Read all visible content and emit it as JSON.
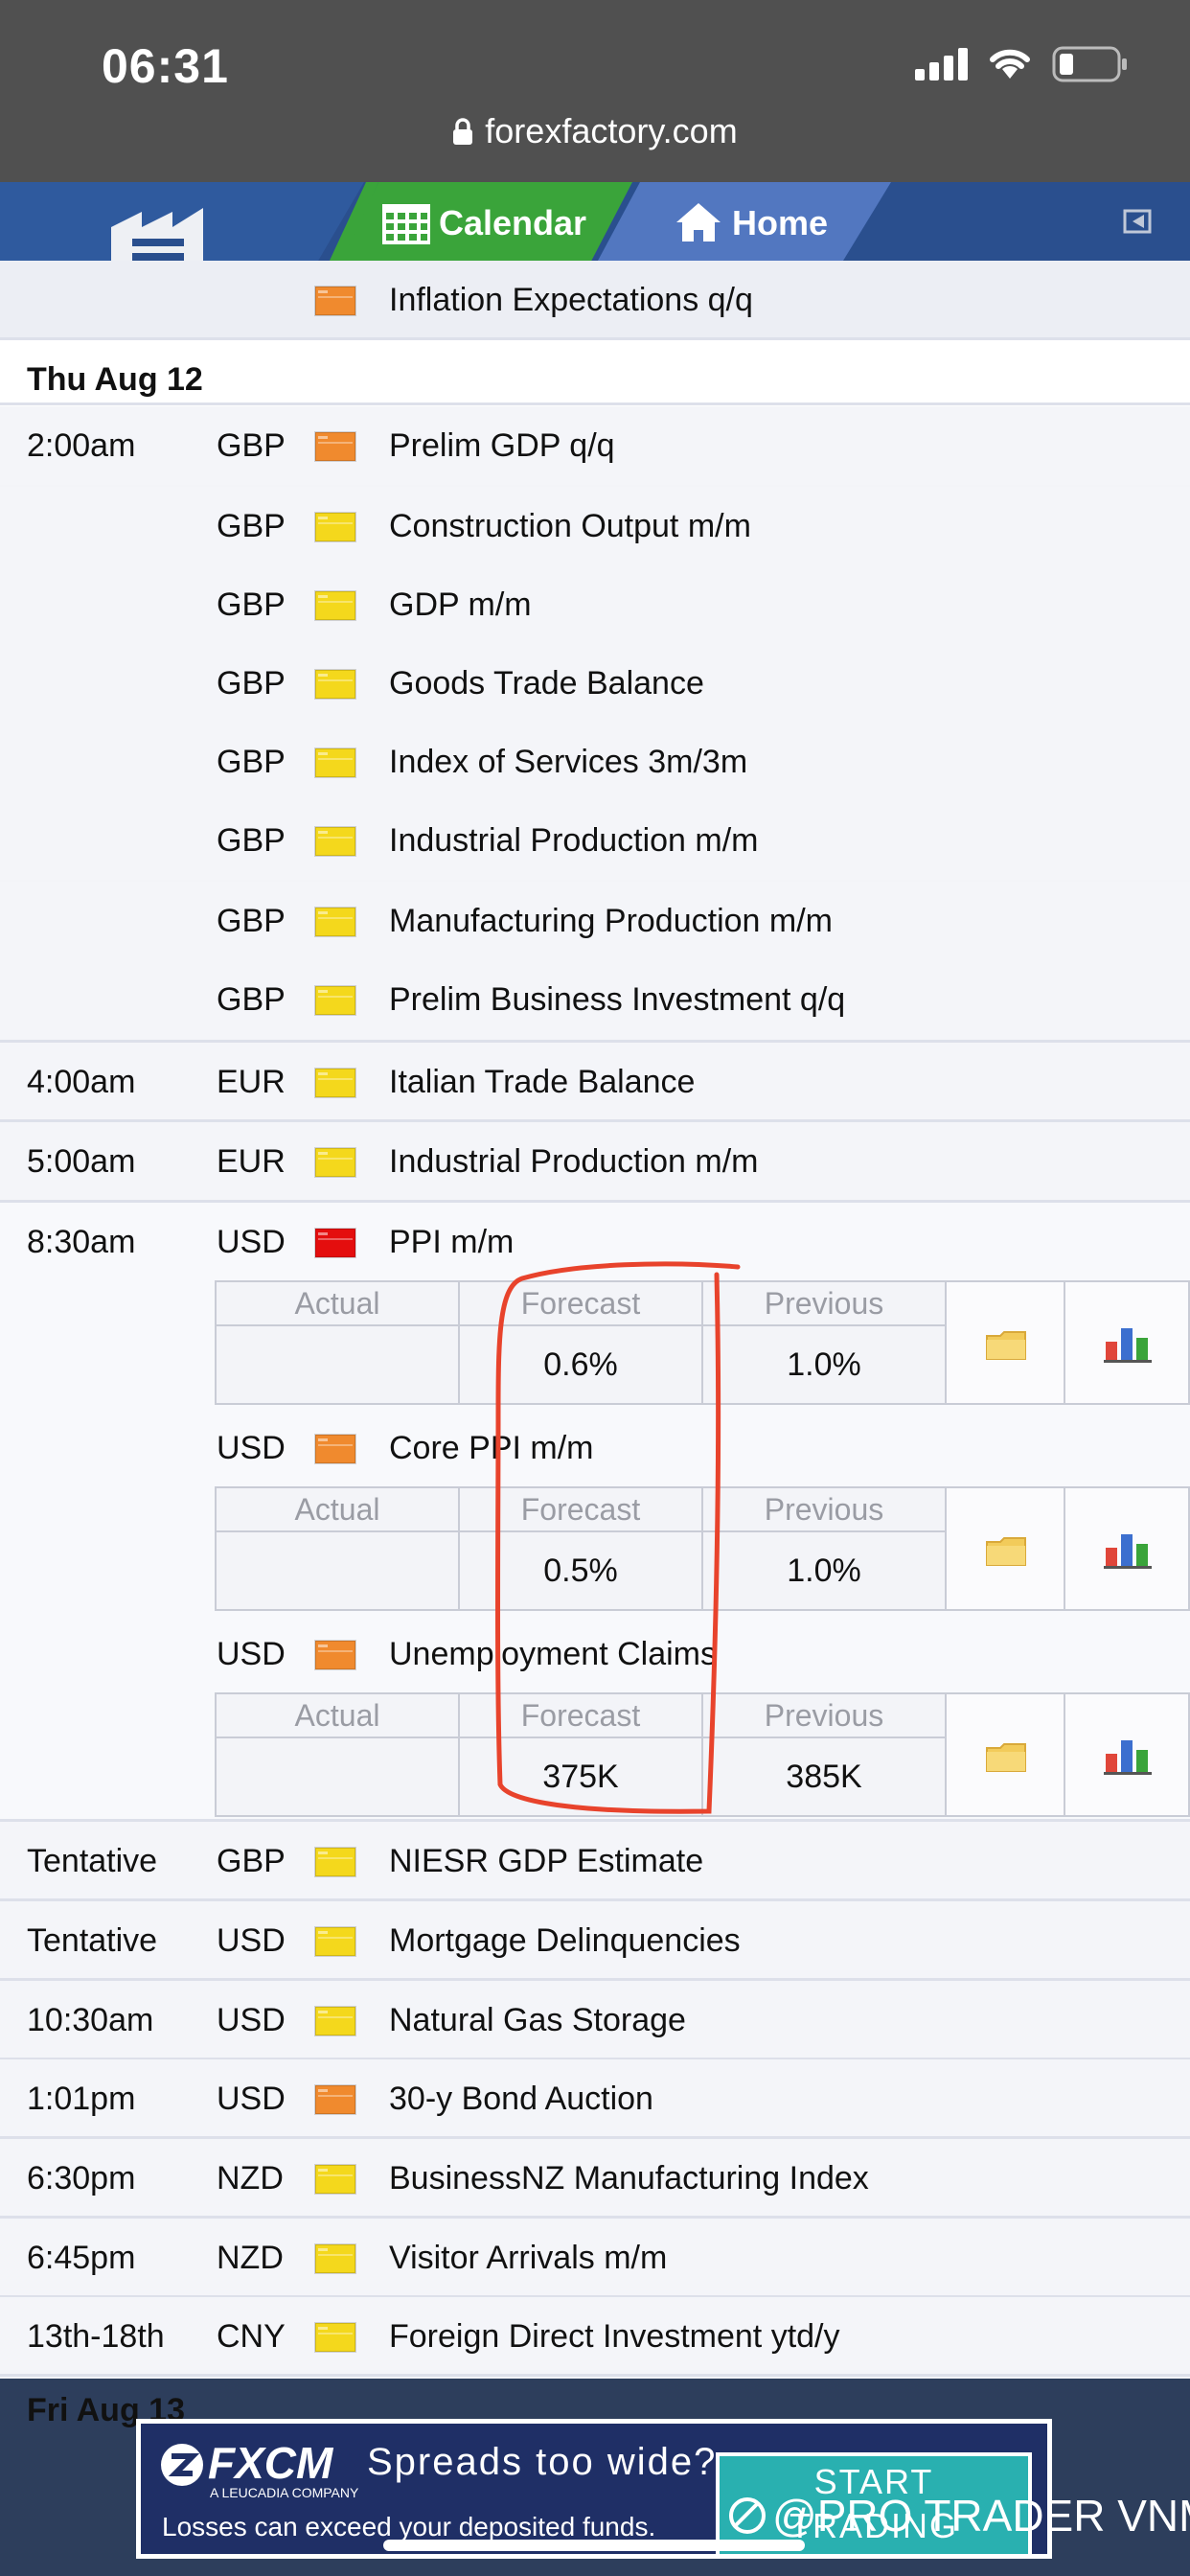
{
  "status_bar": {
    "time": "06:31",
    "url": "forexfactory.com"
  },
  "nav": {
    "calendar_label": "Calendar",
    "home_label": "Home"
  },
  "colors": {
    "high": "#e40e0e",
    "medium": "#f08a2e",
    "low": "#f4d81c",
    "annotation": "#e8432c",
    "nav": "#2a4f8e",
    "green": "#3aa43a"
  },
  "table": {
    "prev_event": {
      "impact": "medium",
      "event": "Inflation Expectations q/q"
    },
    "date_label": "Thu Aug 12",
    "rows": [
      {
        "time": "2:00am",
        "currency": "GBP",
        "impact": "medium",
        "event": "Prelim GDP q/q"
      },
      {
        "time": "",
        "currency": "GBP",
        "impact": "low",
        "event": "Construction Output m/m"
      },
      {
        "time": "",
        "currency": "GBP",
        "impact": "low",
        "event": "GDP m/m"
      },
      {
        "time": "",
        "currency": "GBP",
        "impact": "low",
        "event": "Goods Trade Balance"
      },
      {
        "time": "",
        "currency": "GBP",
        "impact": "low",
        "event": "Index of Services 3m/3m"
      },
      {
        "time": "",
        "currency": "GBP",
        "impact": "low",
        "event": "Industrial Production m/m"
      },
      {
        "time": "",
        "currency": "GBP",
        "impact": "low",
        "event": "Manufacturing Production m/m"
      },
      {
        "time": "",
        "currency": "GBP",
        "impact": "low",
        "event": "Prelim Business Investment q/q"
      },
      {
        "time": "4:00am",
        "currency": "EUR",
        "impact": "low",
        "event": "Italian Trade Balance"
      },
      {
        "time": "5:00am",
        "currency": "EUR",
        "impact": "low",
        "event": "Industrial Production m/m"
      }
    ],
    "detail_headers": {
      "actual": "Actual",
      "forecast": "Forecast",
      "previous": "Previous"
    },
    "usd_block": {
      "time": "8:30am",
      "events": [
        {
          "currency": "USD",
          "impact": "high",
          "event": "PPI m/m",
          "actual": "",
          "forecast": "0.6%",
          "previous": "1.0%"
        },
        {
          "currency": "USD",
          "impact": "medium",
          "event": "Core PPI m/m",
          "actual": "",
          "forecast": "0.5%",
          "previous": "1.0%"
        },
        {
          "currency": "USD",
          "impact": "medium",
          "event": "Unemployment Claims",
          "actual": "",
          "forecast": "375K",
          "previous": "385K"
        }
      ]
    },
    "rows_after": [
      {
        "time": "Tentative",
        "currency": "GBP",
        "impact": "low",
        "event": "NIESR GDP Estimate"
      },
      {
        "time": "Tentative",
        "currency": "USD",
        "impact": "low",
        "event": "Mortgage Delinquencies"
      },
      {
        "time": "10:30am",
        "currency": "USD",
        "impact": "low",
        "event": "Natural Gas Storage"
      },
      {
        "time": "1:01pm",
        "currency": "USD",
        "impact": "medium",
        "event": "30-y Bond Auction"
      },
      {
        "time": "6:30pm",
        "currency": "NZD",
        "impact": "low",
        "event": "BusinessNZ Manufacturing Index"
      },
      {
        "time": "6:45pm",
        "currency": "NZD",
        "impact": "low",
        "event": "Visitor Arrivals m/m"
      },
      {
        "time": "13th-18th",
        "currency": "CNY",
        "impact": "low",
        "event": "Foreign Direct Investment ytd/y"
      }
    ],
    "next_date_partial": "Fri Aug 13"
  },
  "ad": {
    "logo": "FXCM",
    "logo_sub": "A LEUCADIA COMPANY",
    "headline": "Spreads too wide?",
    "warning": "Losses can exceed your deposited funds.",
    "cta_line1": "START",
    "cta_line2": "TRADING"
  },
  "watermark": "@PRO TRADER VNM"
}
